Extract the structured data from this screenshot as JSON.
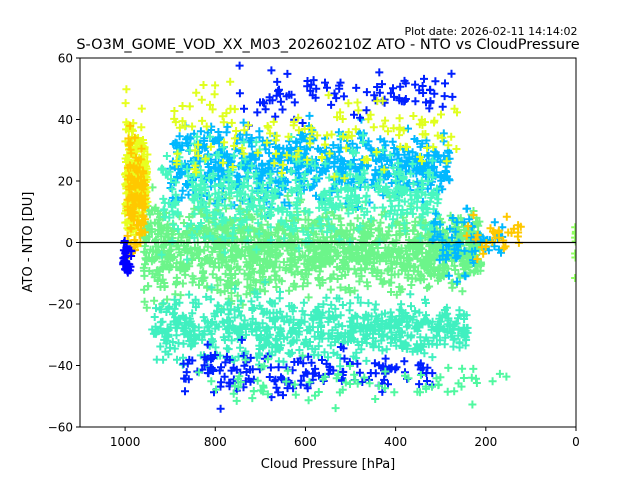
{
  "chart_data": {
    "type": "scatter",
    "title": "S-O3M_GOME_VOD_XX_M03_20260210Z ATO - NTO vs CloudPressure",
    "plot_date_label": "Plot date: 2026-02-11 14:14:02",
    "xlabel": "Cloud Pressure [hPa]",
    "ylabel": "ATO - NTO [DU]",
    "xlim": [
      1100,
      0
    ],
    "ylim": [
      -60,
      60
    ],
    "x_inverted": true,
    "xticks": [
      1000,
      800,
      600,
      400,
      200,
      0
    ],
    "xtick_labels": [
      "1000",
      "800",
      "600",
      "400",
      "200",
      "0"
    ],
    "yticks": [
      -60,
      -40,
      -20,
      0,
      20,
      40,
      60
    ],
    "ytick_labels": [
      "−60",
      "−40",
      "−20",
      "0",
      "20",
      "40",
      "60"
    ],
    "reference_line_y": 0,
    "marker": "plus",
    "grid": false,
    "legend": "none",
    "colormap": [
      "#0000ff",
      "#00b0ff",
      "#40ffb0",
      "#70ff80",
      "#c0ff30",
      "#ffff00",
      "#ffc800"
    ],
    "point_clouds": [
      {
        "name": "dense-core",
        "color": "#6cf58a",
        "x_range": [
          960,
          210
        ],
        "y_center": -2,
        "y_spread": 14,
        "count": 1400
      },
      {
        "name": "upper-band",
        "color": "#00b8ff",
        "x_range": [
          900,
          280
        ],
        "y_center": 25,
        "y_spread": 12,
        "count": 650
      },
      {
        "name": "upper-mixed",
        "color": "#48f7c0",
        "x_range": [
          920,
          300
        ],
        "y_center": 15,
        "y_spread": 16,
        "count": 450
      },
      {
        "name": "lower-band",
        "color": "#40f0c0",
        "x_range": [
          940,
          240
        ],
        "y_center": -28,
        "y_spread": 10,
        "count": 650
      },
      {
        "name": "deep-blue-lower",
        "color": "#0020ff",
        "x_range": [
          880,
          300
        ],
        "y_center": -42,
        "y_spread": 8,
        "count": 160
      },
      {
        "name": "deep-blue-upper",
        "color": "#0020ff",
        "x_range": [
          760,
          270
        ],
        "y_center": 48,
        "y_spread": 8,
        "count": 90
      },
      {
        "name": "yellow-left-edge",
        "color": "#e8ff20",
        "x_range": [
          1000,
          950
        ],
        "y_center": 20,
        "y_spread": 18,
        "count": 260
      },
      {
        "name": "orange-left-edge",
        "color": "#ffc800",
        "x_range": [
          995,
          955
        ],
        "y_center": 15,
        "y_spread": 18,
        "count": 120
      },
      {
        "name": "blue-left-edge",
        "color": "#0000ff",
        "x_range": [
          1005,
          985
        ],
        "y_center": -5,
        "y_spread": 6,
        "count": 30
      },
      {
        "name": "yellow-scattered",
        "color": "#e0ff20",
        "x_range": [
          900,
          250
        ],
        "y_center": 35,
        "y_spread": 15,
        "count": 140
      },
      {
        "name": "right-tail",
        "color": "#00b8ff",
        "x_range": [
          320,
          160
        ],
        "y_center": 0,
        "y_spread": 10,
        "count": 70
      },
      {
        "name": "right-tail-yellow",
        "color": "#ffc800",
        "x_range": [
          250,
          120
        ],
        "y_center": 2,
        "y_spread": 8,
        "count": 30
      },
      {
        "name": "sparse-outliers",
        "color": "#50f8a0",
        "x_range": [
          850,
          150
        ],
        "y_center": -45,
        "y_spread": 8,
        "count": 80
      },
      {
        "name": "zero-edge",
        "color": "#90ff60",
        "x_range": [
          2,
          0
        ],
        "y_center": 0,
        "y_spread": 12,
        "count": 8
      }
    ]
  }
}
